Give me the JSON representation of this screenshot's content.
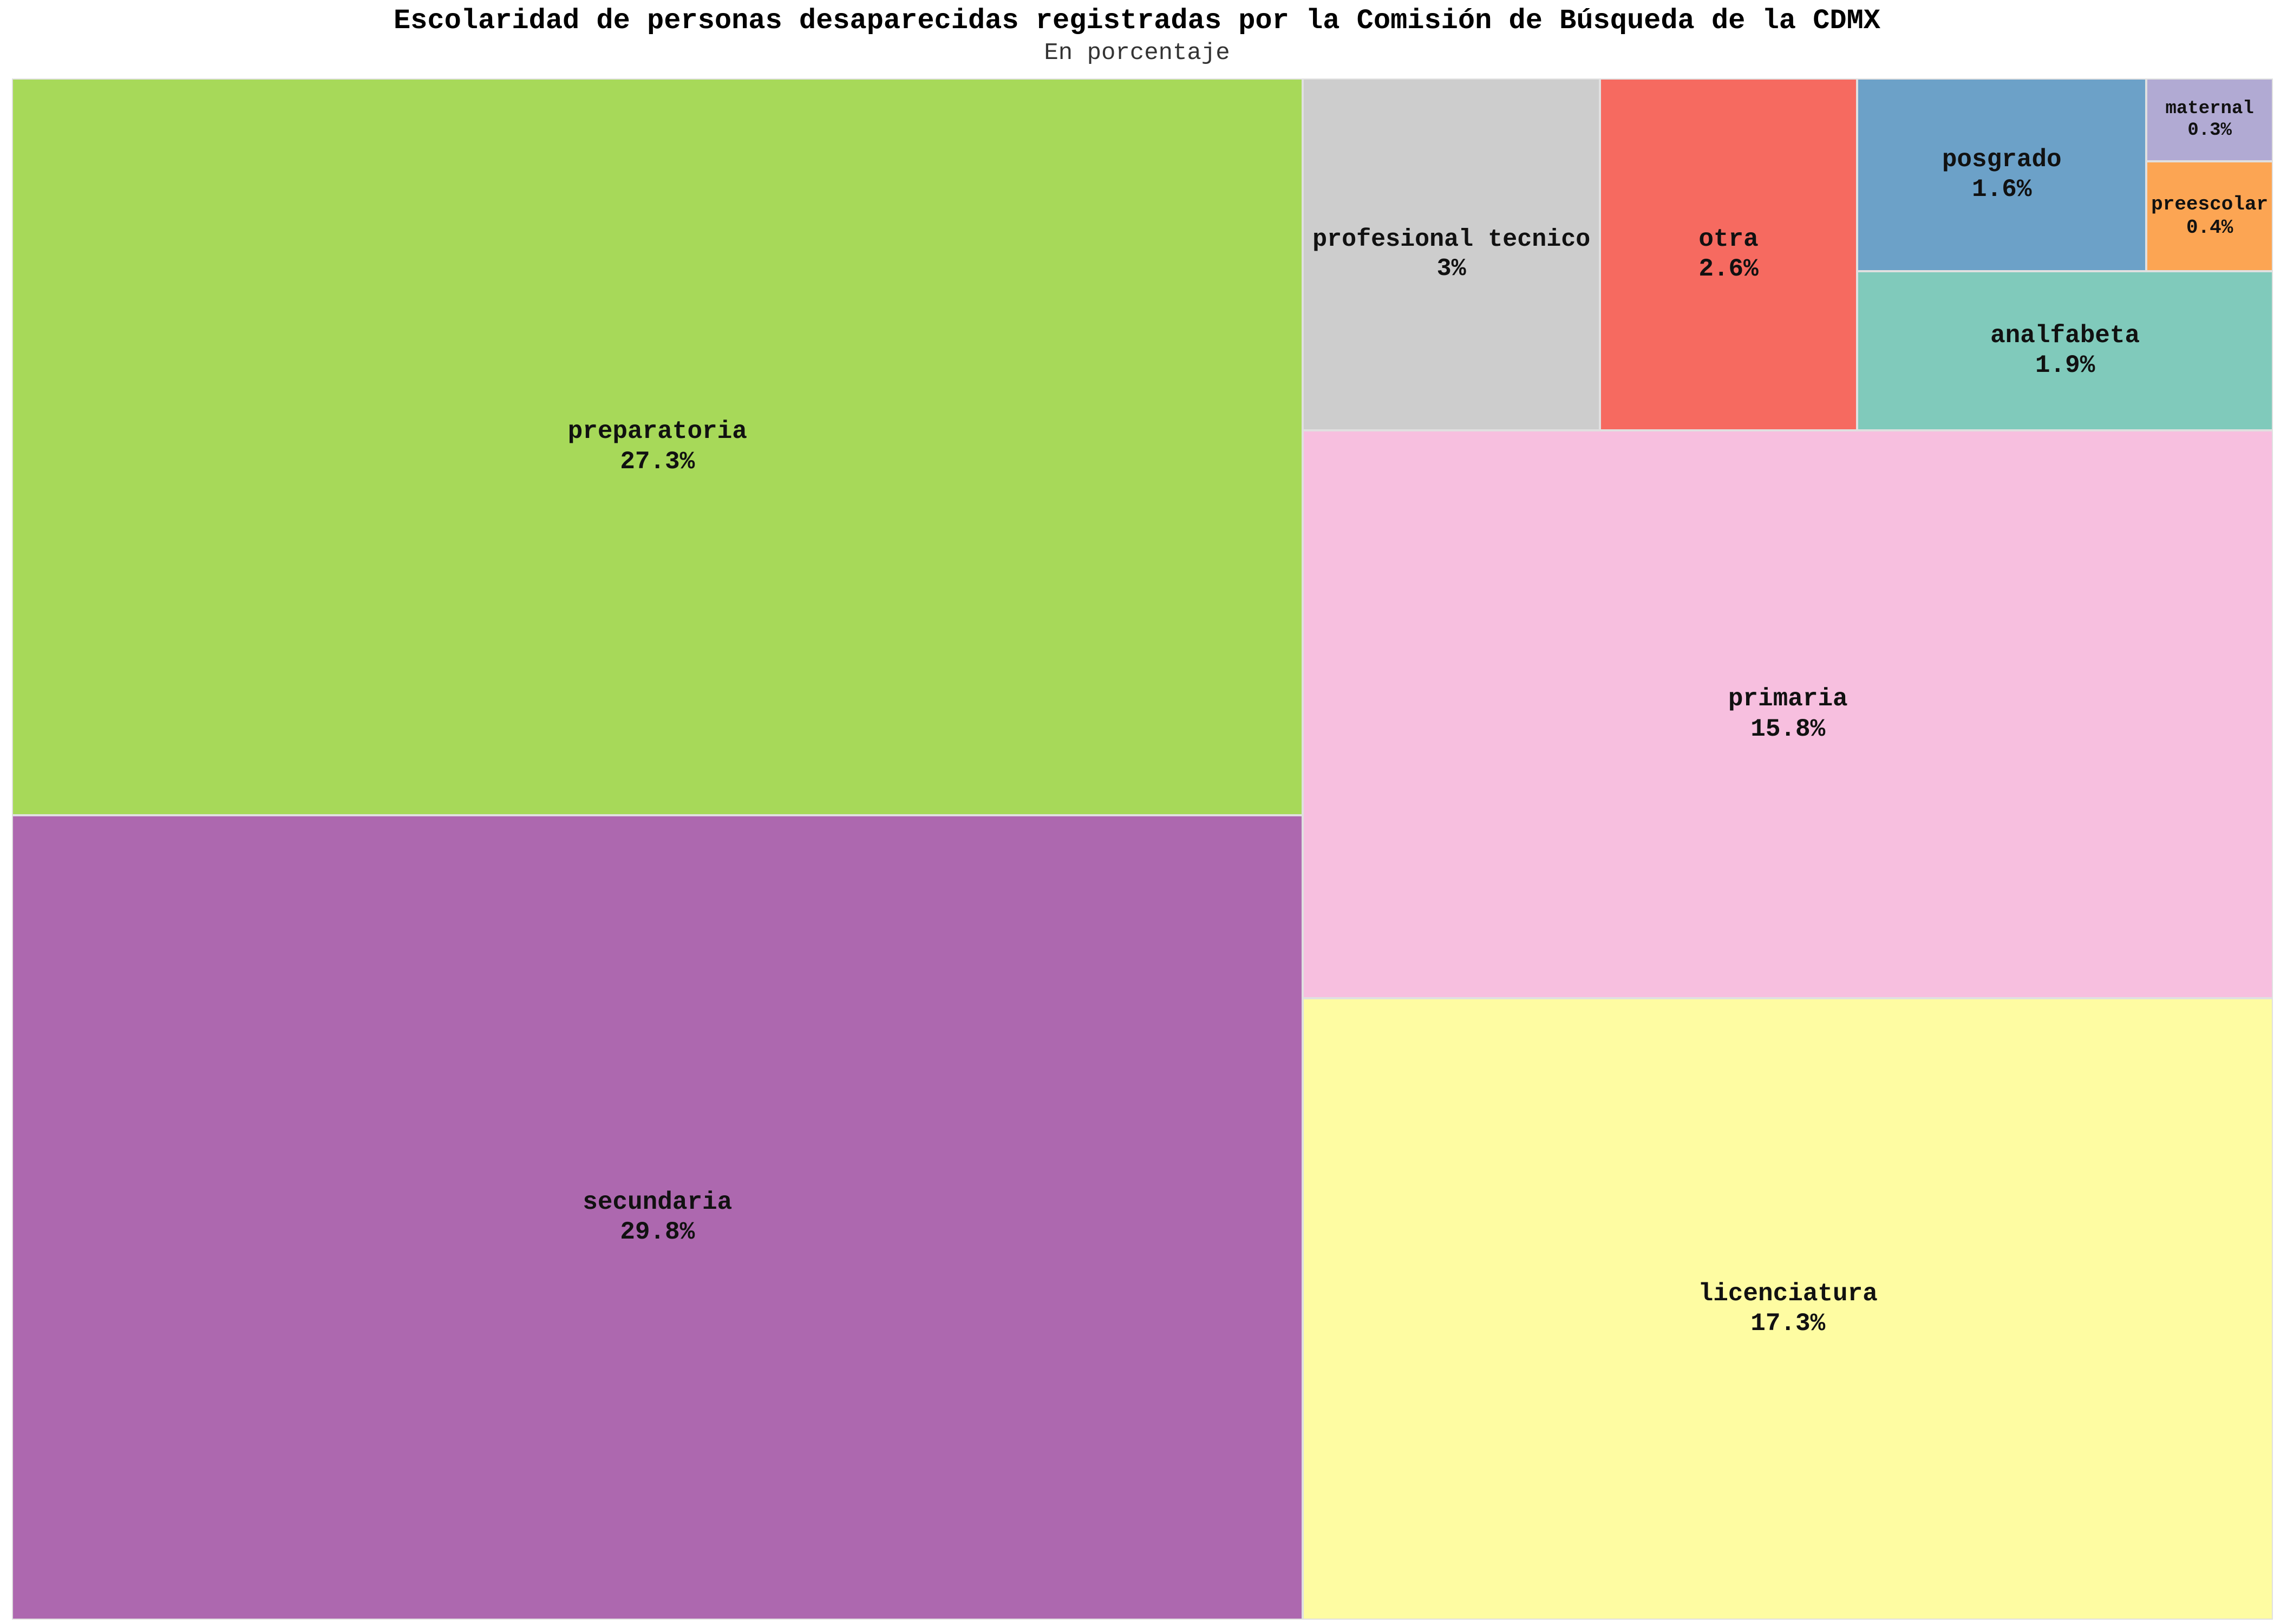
{
  "chart_data": {
    "type": "treemap",
    "title": "Escolaridad de personas desaparecidas registradas por la Comisión de Búsqueda de la CDMX",
    "subtitle": "En porcentaje",
    "unit": "%",
    "items": [
      {
        "label": "secundaria",
        "value": 29.8,
        "display": "29.8%",
        "color": "#ad68af"
      },
      {
        "label": "preparatoria",
        "value": 27.3,
        "display": "27.3%",
        "color": "#a7d959"
      },
      {
        "label": "licenciatura",
        "value": 17.3,
        "display": "17.3%",
        "color": "#fefca2"
      },
      {
        "label": "primaria",
        "value": 15.8,
        "display": "15.8%",
        "color": "#f7bfdf"
      },
      {
        "label": "profesional tecnico",
        "value": 3,
        "display": "3%",
        "color": "#cdcdcd"
      },
      {
        "label": "otra",
        "value": 2.6,
        "display": "2.6%",
        "color": "#f66a60"
      },
      {
        "label": "analfabeta",
        "value": 1.9,
        "display": "1.9%",
        "color": "#80cabb"
      },
      {
        "label": "posgrado",
        "value": 1.6,
        "display": "1.6%",
        "color": "#6ca1c8"
      },
      {
        "label": "preescolar",
        "value": 0.4,
        "display": "0.4%",
        "color": "#fca553"
      },
      {
        "label": "maternal",
        "value": 0.3,
        "display": "0.3%",
        "color": "#b1aad3"
      }
    ]
  }
}
